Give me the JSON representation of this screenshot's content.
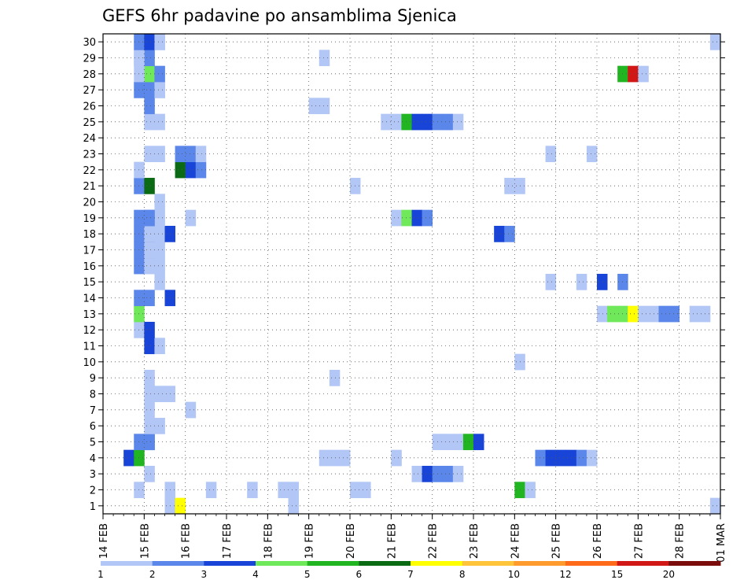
{
  "chart_data": {
    "type": "heatmap",
    "title": "GEFS 6hr padavine po ansamblima Sjenica",
    "xlabel": "",
    "ylabel": "",
    "x_ticks": [
      "14 FEB",
      "15 FEB",
      "16 FEB",
      "17 FEB",
      "18 FEB",
      "19 FEB",
      "20 FEB",
      "21 FEB",
      "22 FEB",
      "23 FEB",
      "24 FEB",
      "25 FEB",
      "26 FEB",
      "27 FEB",
      "28 FEB",
      "01 MAR"
    ],
    "y_ticks": [
      "1",
      "2",
      "3",
      "4",
      "5",
      "6",
      "7",
      "8",
      "9",
      "10",
      "11",
      "12",
      "13",
      "14",
      "15",
      "16",
      "17",
      "18",
      "19",
      "20",
      "21",
      "22",
      "23",
      "24",
      "25",
      "26",
      "27",
      "28",
      "29",
      "30"
    ],
    "xlim": [
      0,
      60
    ],
    "ylim": [
      0.5,
      30.5
    ],
    "grid": true,
    "legend": {
      "placement": "bottom",
      "labels": [
        "1",
        "2",
        "3",
        "4",
        "5",
        "6",
        "7",
        "8",
        "10",
        "12",
        "15",
        "20"
      ],
      "colors": [
        "#b3c7f7",
        "#5b86ea",
        "#1844d8",
        "#6fe85a",
        "#21b621",
        "#0b6b14",
        "#ffff00",
        "#ffc53a",
        "#ff9a2e",
        "#ff6a1a",
        "#d21717",
        "#7a0c0c"
      ]
    },
    "color_scale": [
      "#b3c7f7",
      "#5b86ea",
      "#1844d8",
      "#6fe85a",
      "#21b621",
      "#0b6b14",
      "#ffff00",
      "#ffc53a",
      "#ff9a2e",
      "#ff6a1a",
      "#d21717",
      "#7a0c0c"
    ],
    "cells": [
      [
        6,
        1,
        1
      ],
      [
        7,
        1,
        7
      ],
      [
        18,
        1,
        1
      ],
      [
        59,
        1,
        1
      ],
      [
        3,
        2,
        1
      ],
      [
        6,
        2,
        1
      ],
      [
        10,
        2,
        1
      ],
      [
        14,
        2,
        1
      ],
      [
        17,
        2,
        1
      ],
      [
        18,
        2,
        1
      ],
      [
        24,
        2,
        1
      ],
      [
        25,
        2,
        1
      ],
      [
        40,
        2,
        5
      ],
      [
        41,
        2,
        1
      ],
      [
        4,
        3,
        1
      ],
      [
        30,
        3,
        1
      ],
      [
        31,
        3,
        3
      ],
      [
        32,
        3,
        2
      ],
      [
        33,
        3,
        2
      ],
      [
        34,
        3,
        1
      ],
      [
        2,
        4,
        3
      ],
      [
        3,
        4,
        5
      ],
      [
        21,
        4,
        1
      ],
      [
        22,
        4,
        1
      ],
      [
        23,
        4,
        1
      ],
      [
        28,
        4,
        1
      ],
      [
        42,
        4,
        2
      ],
      [
        43,
        4,
        3
      ],
      [
        44,
        4,
        3
      ],
      [
        45,
        4,
        3
      ],
      [
        46,
        4,
        2
      ],
      [
        47,
        4,
        1
      ],
      [
        4,
        5,
        2
      ],
      [
        3,
        5,
        2
      ],
      [
        4,
        5,
        2
      ],
      [
        32,
        5,
        1
      ],
      [
        33,
        5,
        1
      ],
      [
        34,
        5,
        1
      ],
      [
        35,
        5,
        5
      ],
      [
        36,
        5,
        3
      ],
      [
        4,
        6,
        1
      ],
      [
        5,
        6,
        1
      ],
      [
        4,
        7,
        1
      ],
      [
        8,
        7,
        1
      ],
      [
        4,
        8,
        1
      ],
      [
        5,
        8,
        1
      ],
      [
        6,
        8,
        1
      ],
      [
        4,
        9,
        1
      ],
      [
        22,
        9,
        1
      ],
      [
        40,
        10,
        1
      ],
      [
        4,
        11,
        3
      ],
      [
        5,
        11,
        1
      ],
      [
        3,
        12,
        1
      ],
      [
        4,
        12,
        3
      ],
      [
        3,
        13,
        4
      ],
      [
        48,
        13,
        1
      ],
      [
        49,
        13,
        4
      ],
      [
        50,
        13,
        4
      ],
      [
        51,
        13,
        7
      ],
      [
        52,
        13,
        1
      ],
      [
        53,
        13,
        1
      ],
      [
        54,
        13,
        2
      ],
      [
        55,
        13,
        2
      ],
      [
        57,
        13,
        1
      ],
      [
        58,
        13,
        1
      ],
      [
        3,
        14,
        2
      ],
      [
        4,
        14,
        2
      ],
      [
        6,
        14,
        3
      ],
      [
        5,
        15,
        1
      ],
      [
        43,
        15,
        1
      ],
      [
        46,
        15,
        1
      ],
      [
        48,
        15,
        3
      ],
      [
        50,
        15,
        2
      ],
      [
        4,
        16,
        1
      ],
      [
        3,
        16,
        2
      ],
      [
        4,
        16,
        1
      ],
      [
        5,
        16,
        1
      ],
      [
        4,
        17,
        2
      ],
      [
        3,
        17,
        2
      ],
      [
        4,
        17,
        1
      ],
      [
        5,
        17,
        1
      ],
      [
        4,
        18,
        2
      ],
      [
        3,
        18,
        2
      ],
      [
        4,
        18,
        1
      ],
      [
        5,
        18,
        1
      ],
      [
        6,
        18,
        3
      ],
      [
        38,
        18,
        3
      ],
      [
        39,
        18,
        2
      ],
      [
        4,
        19,
        2
      ],
      [
        5,
        19,
        1
      ],
      [
        3,
        19,
        2
      ],
      [
        4,
        19,
        2
      ],
      [
        8,
        19,
        1
      ],
      [
        28,
        19,
        1
      ],
      [
        29,
        19,
        4
      ],
      [
        30,
        19,
        3
      ],
      [
        31,
        19,
        2
      ],
      [
        5,
        20,
        1
      ],
      [
        3,
        21,
        2
      ],
      [
        4,
        21,
        6
      ],
      [
        24,
        21,
        1
      ],
      [
        39,
        21,
        1
      ],
      [
        40,
        21,
        1
      ],
      [
        3,
        22,
        1
      ],
      [
        7,
        22,
        6
      ],
      [
        8,
        22,
        3
      ],
      [
        9,
        22,
        2
      ],
      [
        5,
        23,
        1
      ],
      [
        4,
        23,
        1
      ],
      [
        7,
        23,
        2
      ],
      [
        8,
        23,
        2
      ],
      [
        9,
        23,
        1
      ],
      [
        43,
        23,
        1
      ],
      [
        47,
        23,
        1
      ],
      [
        4,
        25,
        1
      ],
      [
        5,
        25,
        1
      ],
      [
        27,
        25,
        1
      ],
      [
        28,
        25,
        1
      ],
      [
        29,
        25,
        5
      ],
      [
        30,
        25,
        3
      ],
      [
        31,
        25,
        3
      ],
      [
        32,
        25,
        2
      ],
      [
        33,
        25,
        2
      ],
      [
        34,
        25,
        1
      ],
      [
        4,
        26,
        2
      ],
      [
        20,
        26,
        1
      ],
      [
        21,
        26,
        1
      ],
      [
        5,
        27,
        1
      ],
      [
        3,
        27,
        2
      ],
      [
        4,
        27,
        2
      ],
      [
        5,
        27,
        1
      ],
      [
        4,
        28,
        4
      ],
      [
        5,
        28,
        2
      ],
      [
        3,
        28,
        1
      ],
      [
        50,
        28,
        5
      ],
      [
        51,
        28,
        11
      ],
      [
        52,
        28,
        1
      ],
      [
        3,
        29,
        1
      ],
      [
        4,
        29,
        2
      ],
      [
        3,
        29,
        1
      ],
      [
        21,
        29,
        1
      ],
      [
        5,
        30,
        1
      ],
      [
        3,
        30,
        2
      ],
      [
        4,
        30,
        3
      ],
      [
        5,
        30,
        1
      ],
      [
        59,
        30,
        1
      ]
    ]
  }
}
